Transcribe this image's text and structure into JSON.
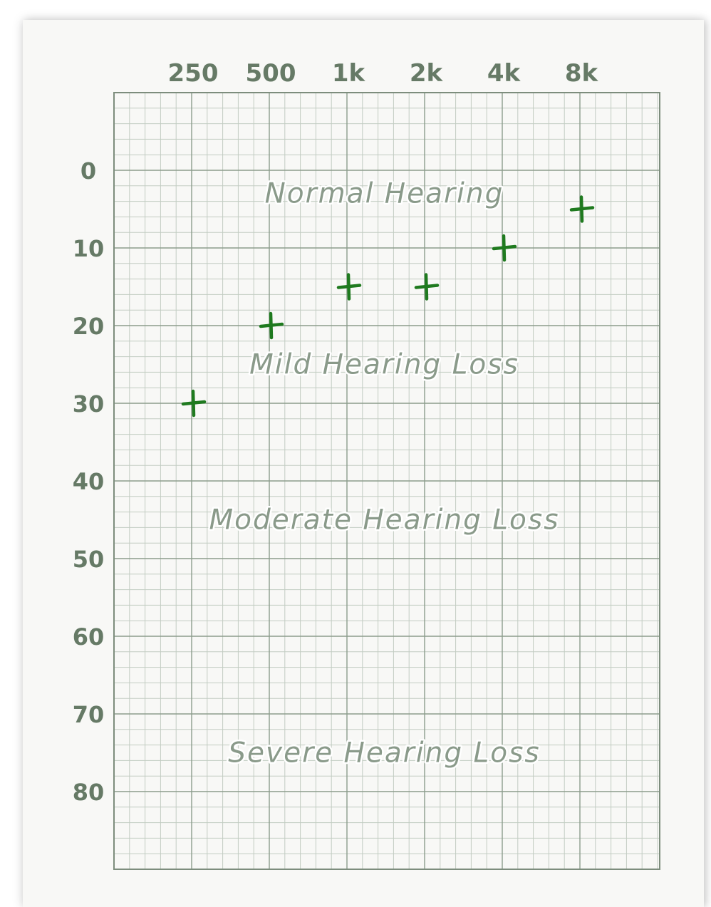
{
  "chart_data": {
    "type": "scatter",
    "title": "",
    "xlabel": "",
    "ylabel": "",
    "categories": [
      "250",
      "500",
      "1k",
      "2k",
      "4k",
      "8k"
    ],
    "y_ticks": [
      "0",
      "10",
      "20",
      "30",
      "40",
      "50",
      "60",
      "70",
      "80"
    ],
    "y_tick_values": [
      0,
      10,
      20,
      30,
      40,
      50,
      60,
      70,
      80
    ],
    "ylim": [
      -10,
      90
    ],
    "y_inverted": true,
    "grid": true,
    "marker": "plus",
    "series": [
      {
        "values": [
          30,
          20,
          15,
          15,
          10,
          5
        ]
      }
    ],
    "annotations": [
      {
        "text": "Normal Hearing",
        "y": 3,
        "x_index": 2.5
      },
      {
        "text": "Mild Hearing Loss",
        "y": 25,
        "x_index": 2.5
      },
      {
        "text": "Moderate Hearing Loss",
        "y": 45,
        "x_index": 2.5
      },
      {
        "text": "Severe Hearing Loss",
        "y": 75,
        "x_index": 2.5
      }
    ],
    "colors": {
      "grid_minor": "#c2ccc2",
      "grid_major": "#8c9c8c",
      "frame": "#7d8d7d",
      "labels": "#667a66",
      "marker": "#1f7a1f"
    }
  }
}
